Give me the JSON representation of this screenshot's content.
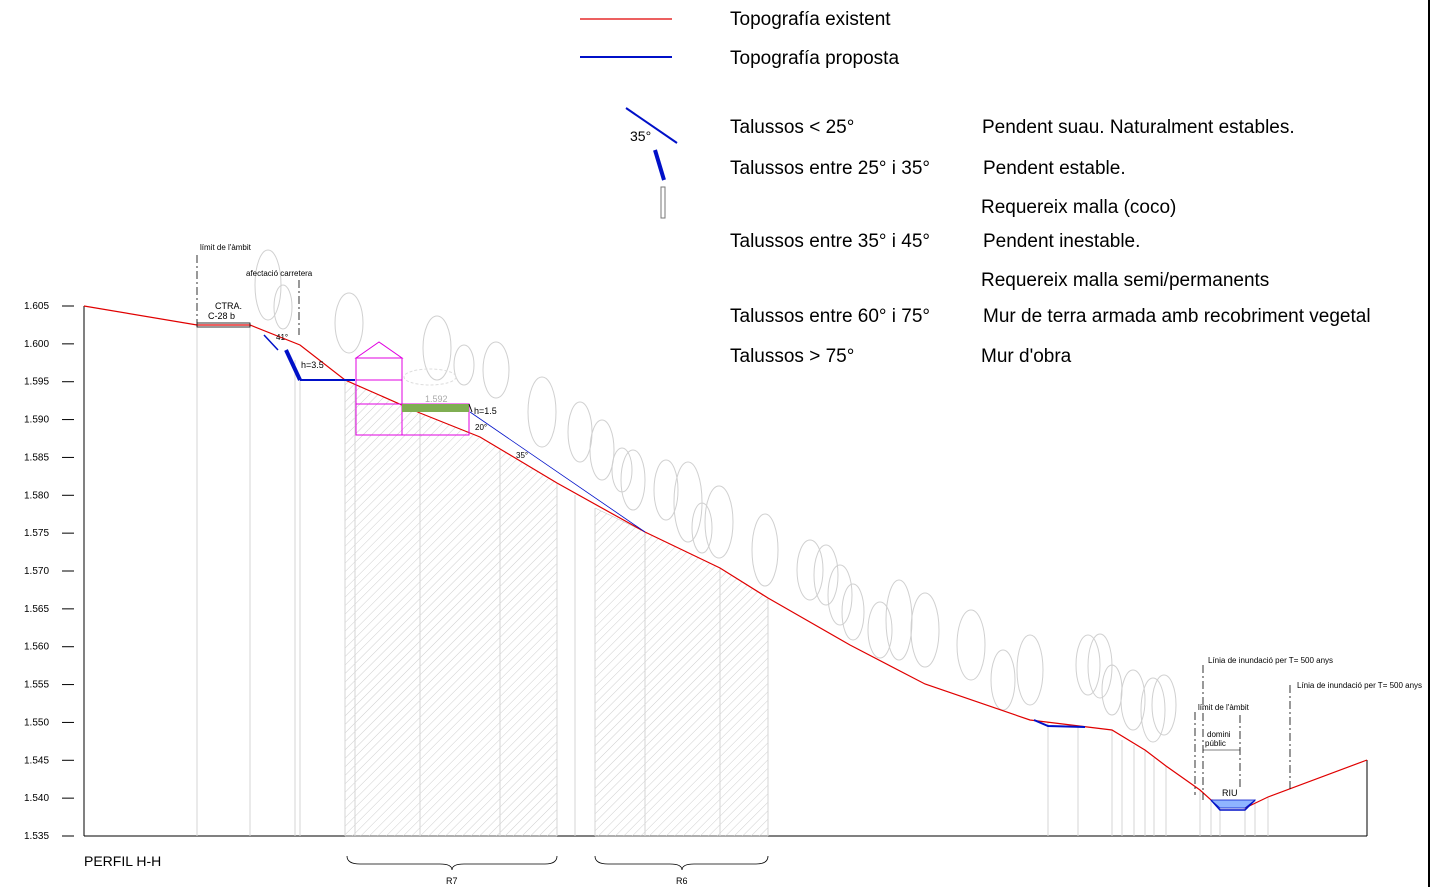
{
  "legend": {
    "existing_label": "Topografía existent",
    "proposed_label": "Topografía proposta",
    "slope_angle_label": "35°",
    "existing_color": "#e00000",
    "proposed_color": "#0010c8",
    "rows": [
      {
        "slope": "Talussos < 25°",
        "desc": "Pendent suau. Naturalment estables."
      },
      {
        "slope": "Talussos entre 25° i 35°",
        "desc": "Pendent estable."
      },
      {
        "slope": "",
        "desc": "Requereix malla (coco)"
      },
      {
        "slope": "Talussos entre 35° i 45°",
        "desc": "Pendent inestable."
      },
      {
        "slope": "",
        "desc": "Requereix malla semi/permanents"
      },
      {
        "slope": "Talussos entre 60° i 75°",
        "desc": "Mur de terra armada amb recobriment vegetal"
      },
      {
        "slope": "Talussos > 75°",
        "desc": "Mur d'obra"
      }
    ]
  },
  "profile": {
    "title": "PERFIL H-H",
    "y_ticks": [
      "1.605",
      "1.600",
      "1.595",
      "1.590",
      "1.585",
      "1.580",
      "1.575",
      "1.570",
      "1.565",
      "1.560",
      "1.555",
      "1.550",
      "1.545",
      "1.540",
      "1.535"
    ],
    "annotations": {
      "limit_ambit_left": "límit de l'àmbit",
      "afectacio": "afectació carretera",
      "road_line1": "CTRA.",
      "road_line2": "C-28 b",
      "angle_41": "41°",
      "h35": "h=3.5",
      "elev_1592": "1.592",
      "h15": "h=1.5",
      "angle_20": "20°",
      "angle_35": "35°",
      "flood_1": "Línia de inundació per T= 500 anys",
      "flood_2": "Línia de inundació per T= 500 anys",
      "limit_ambit_right": "límit de l'àmbit",
      "domini_1": "domini",
      "domini_2": "públic",
      "riu": "RIU"
    },
    "zones": [
      "R7",
      "R6"
    ],
    "green_terrace_color": "#7fae52",
    "building_color": "#e000e0",
    "water_color": "#8fb4ff"
  }
}
